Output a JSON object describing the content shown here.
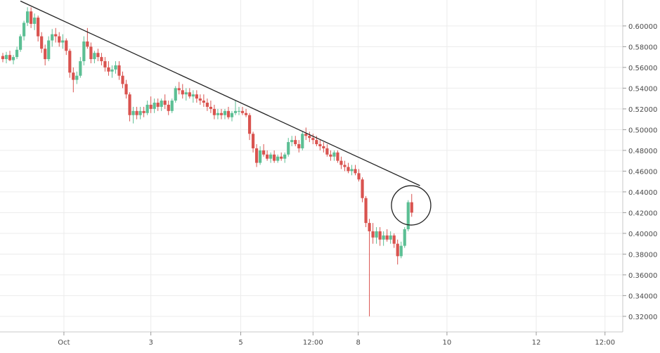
{
  "chart_data": {
    "type": "candlestick",
    "title": "",
    "xlabel": "",
    "ylabel": "",
    "ylim": [
      0.305,
      0.625
    ],
    "grid": true,
    "y_ticks": [
      "0.60000",
      "0.58000",
      "0.56000",
      "0.54000",
      "0.52000",
      "0.50000",
      "0.48000",
      "0.46000",
      "0.44000",
      "0.42000",
      "0.40000",
      "0.38000",
      "0.36000",
      "0.34000",
      "0.32000"
    ],
    "y_tick_values": [
      0.6,
      0.58,
      0.56,
      0.54,
      0.52,
      0.5,
      0.48,
      0.46,
      0.44,
      0.42,
      0.4,
      0.38,
      0.36,
      0.34,
      0.32
    ],
    "x_ticks": [
      "Oct",
      "3",
      "5",
      "12:00",
      "8",
      "10",
      "12",
      "12:00"
    ],
    "x_tick_pos": [
      1.04,
      2.52,
      4.05,
      5.28,
      6.05,
      7.56,
      9.08,
      10.25
    ],
    "xlim": [
      0.0,
      10.6
    ],
    "up_color": "#5cbf94",
    "down_color": "#d9534f",
    "candles": [
      [
        0.0,
        0.571,
        0.574,
        0.565,
        0.568
      ],
      [
        0.06,
        0.568,
        0.575,
        0.564,
        0.572
      ],
      [
        0.12,
        0.572,
        0.576,
        0.566,
        0.567
      ],
      [
        0.18,
        0.567,
        0.572,
        0.563,
        0.57
      ],
      [
        0.24,
        0.57,
        0.58,
        0.568,
        0.577
      ],
      [
        0.3,
        0.577,
        0.592,
        0.575,
        0.59
      ],
      [
        0.36,
        0.59,
        0.605,
        0.586,
        0.603
      ],
      [
        0.42,
        0.603,
        0.618,
        0.6,
        0.614
      ],
      [
        0.48,
        0.614,
        0.618,
        0.598,
        0.602
      ],
      [
        0.54,
        0.602,
        0.612,
        0.596,
        0.608
      ],
      [
        0.6,
        0.608,
        0.61,
        0.585,
        0.59
      ],
      [
        0.66,
        0.59,
        0.594,
        0.574,
        0.578
      ],
      [
        0.72,
        0.578,
        0.582,
        0.562,
        0.568
      ],
      [
        0.78,
        0.568,
        0.59,
        0.566,
        0.586
      ],
      [
        0.84,
        0.586,
        0.597,
        0.58,
        0.592
      ],
      [
        0.9,
        0.592,
        0.598,
        0.584,
        0.59
      ],
      [
        0.96,
        0.59,
        0.594,
        0.58,
        0.584
      ],
      [
        1.02,
        0.584,
        0.592,
        0.578,
        0.586
      ],
      [
        1.08,
        0.586,
        0.588,
        0.572,
        0.576
      ],
      [
        1.14,
        0.576,
        0.578,
        0.55,
        0.555
      ],
      [
        1.2,
        0.555,
        0.56,
        0.536,
        0.548
      ],
      [
        1.26,
        0.548,
        0.556,
        0.544,
        0.552
      ],
      [
        1.32,
        0.552,
        0.57,
        0.55,
        0.566
      ],
      [
        1.38,
        0.566,
        0.59,
        0.562,
        0.585
      ],
      [
        1.44,
        0.585,
        0.598,
        0.578,
        0.58
      ],
      [
        1.5,
        0.58,
        0.584,
        0.564,
        0.568
      ],
      [
        1.56,
        0.568,
        0.576,
        0.564,
        0.574
      ],
      [
        1.62,
        0.574,
        0.578,
        0.566,
        0.57
      ],
      [
        1.68,
        0.57,
        0.574,
        0.562,
        0.566
      ],
      [
        1.74,
        0.566,
        0.57,
        0.556,
        0.56
      ],
      [
        1.8,
        0.56,
        0.566,
        0.552,
        0.556
      ],
      [
        1.86,
        0.556,
        0.562,
        0.55,
        0.558
      ],
      [
        1.92,
        0.558,
        0.566,
        0.554,
        0.562
      ],
      [
        1.98,
        0.562,
        0.566,
        0.548,
        0.552
      ],
      [
        2.04,
        0.552,
        0.556,
        0.54,
        0.544
      ],
      [
        2.1,
        0.544,
        0.548,
        0.53,
        0.534
      ],
      [
        2.16,
        0.534,
        0.536,
        0.508,
        0.514
      ],
      [
        2.22,
        0.514,
        0.522,
        0.506,
        0.518
      ],
      [
        2.28,
        0.518,
        0.522,
        0.51,
        0.514
      ],
      [
        2.34,
        0.514,
        0.522,
        0.51,
        0.518
      ],
      [
        2.4,
        0.518,
        0.522,
        0.512,
        0.516
      ],
      [
        2.46,
        0.516,
        0.528,
        0.514,
        0.524
      ],
      [
        2.52,
        0.524,
        0.532,
        0.516,
        0.52
      ],
      [
        2.58,
        0.52,
        0.53,
        0.516,
        0.526
      ],
      [
        2.64,
        0.526,
        0.53,
        0.518,
        0.522
      ],
      [
        2.7,
        0.522,
        0.53,
        0.518,
        0.528
      ],
      [
        2.76,
        0.528,
        0.534,
        0.52,
        0.524
      ],
      [
        2.82,
        0.524,
        0.528,
        0.514,
        0.518
      ],
      [
        2.88,
        0.518,
        0.53,
        0.516,
        0.528
      ],
      [
        2.94,
        0.528,
        0.542,
        0.526,
        0.54
      ],
      [
        3.0,
        0.54,
        0.546,
        0.534,
        0.538
      ],
      [
        3.06,
        0.538,
        0.544,
        0.53,
        0.534
      ],
      [
        3.12,
        0.534,
        0.54,
        0.528,
        0.536
      ],
      [
        3.18,
        0.536,
        0.54,
        0.53,
        0.532
      ],
      [
        3.24,
        0.532,
        0.538,
        0.526,
        0.534
      ],
      [
        3.3,
        0.534,
        0.538,
        0.526,
        0.53
      ],
      [
        3.36,
        0.53,
        0.534,
        0.524,
        0.528
      ],
      [
        3.42,
        0.528,
        0.534,
        0.522,
        0.526
      ],
      [
        3.48,
        0.526,
        0.53,
        0.518,
        0.522
      ],
      [
        3.54,
        0.522,
        0.528,
        0.516,
        0.52
      ],
      [
        3.6,
        0.52,
        0.524,
        0.51,
        0.514
      ],
      [
        3.66,
        0.514,
        0.52,
        0.51,
        0.516
      ],
      [
        3.72,
        0.516,
        0.52,
        0.51,
        0.514
      ],
      [
        3.78,
        0.514,
        0.52,
        0.51,
        0.518
      ],
      [
        3.84,
        0.518,
        0.522,
        0.51,
        0.512
      ],
      [
        3.9,
        0.512,
        0.518,
        0.508,
        0.516
      ],
      [
        3.96,
        0.516,
        0.528,
        0.514,
        0.518
      ],
      [
        4.02,
        0.518,
        0.522,
        0.514,
        0.518
      ],
      [
        4.08,
        0.518,
        0.522,
        0.514,
        0.516
      ],
      [
        4.14,
        0.516,
        0.52,
        0.512,
        0.514
      ],
      [
        4.2,
        0.514,
        0.516,
        0.49,
        0.496
      ],
      [
        4.26,
        0.496,
        0.498,
        0.478,
        0.482
      ],
      [
        4.32,
        0.482,
        0.486,
        0.464,
        0.468
      ],
      [
        4.38,
        0.468,
        0.484,
        0.466,
        0.48
      ],
      [
        4.44,
        0.48,
        0.486,
        0.474,
        0.476
      ],
      [
        4.5,
        0.476,
        0.48,
        0.47,
        0.472
      ],
      [
        4.56,
        0.472,
        0.478,
        0.468,
        0.476
      ],
      [
        4.62,
        0.476,
        0.48,
        0.468,
        0.47
      ],
      [
        4.68,
        0.47,
        0.476,
        0.468,
        0.474
      ],
      [
        4.74,
        0.474,
        0.478,
        0.47,
        0.472
      ],
      [
        4.8,
        0.472,
        0.478,
        0.468,
        0.476
      ],
      [
        4.86,
        0.476,
        0.492,
        0.474,
        0.488
      ],
      [
        4.92,
        0.488,
        0.494,
        0.484,
        0.49
      ],
      [
        4.98,
        0.49,
        0.494,
        0.484,
        0.486
      ],
      [
        5.04,
        0.486,
        0.49,
        0.478,
        0.482
      ],
      [
        5.1,
        0.482,
        0.498,
        0.48,
        0.496
      ],
      [
        5.16,
        0.496,
        0.502,
        0.49,
        0.494
      ],
      [
        5.22,
        0.494,
        0.498,
        0.488,
        0.492
      ],
      [
        5.28,
        0.492,
        0.496,
        0.486,
        0.49
      ],
      [
        5.34,
        0.49,
        0.494,
        0.484,
        0.486
      ],
      [
        5.4,
        0.486,
        0.49,
        0.48,
        0.484
      ],
      [
        5.46,
        0.484,
        0.488,
        0.478,
        0.482
      ],
      [
        5.52,
        0.482,
        0.486,
        0.474,
        0.476
      ],
      [
        5.58,
        0.476,
        0.48,
        0.47,
        0.474
      ],
      [
        5.64,
        0.474,
        0.48,
        0.47,
        0.478
      ],
      [
        5.7,
        0.478,
        0.48,
        0.468,
        0.47
      ],
      [
        5.76,
        0.47,
        0.474,
        0.462,
        0.466
      ],
      [
        5.82,
        0.466,
        0.47,
        0.46,
        0.464
      ],
      [
        5.88,
        0.464,
        0.468,
        0.458,
        0.46
      ],
      [
        5.94,
        0.46,
        0.466,
        0.456,
        0.462
      ],
      [
        6.0,
        0.462,
        0.466,
        0.456,
        0.458
      ],
      [
        6.06,
        0.458,
        0.462,
        0.45,
        0.452
      ],
      [
        6.12,
        0.452,
        0.454,
        0.43,
        0.434
      ],
      [
        6.18,
        0.434,
        0.436,
        0.406,
        0.41
      ],
      [
        6.24,
        0.41,
        0.414,
        0.32,
        0.402
      ],
      [
        6.3,
        0.402,
        0.41,
        0.39,
        0.396
      ],
      [
        6.36,
        0.396,
        0.406,
        0.39,
        0.402
      ],
      [
        6.42,
        0.402,
        0.406,
        0.388,
        0.394
      ],
      [
        6.48,
        0.394,
        0.402,
        0.388,
        0.398
      ],
      [
        6.54,
        0.398,
        0.404,
        0.392,
        0.394
      ],
      [
        6.6,
        0.394,
        0.402,
        0.39,
        0.398
      ],
      [
        6.66,
        0.398,
        0.4,
        0.386,
        0.39
      ],
      [
        6.72,
        0.39,
        0.394,
        0.37,
        0.378
      ],
      [
        6.78,
        0.378,
        0.392,
        0.376,
        0.388
      ],
      [
        6.84,
        0.388,
        0.406,
        0.386,
        0.404
      ],
      [
        6.9,
        0.404,
        0.432,
        0.402,
        0.43
      ],
      [
        6.96,
        0.43,
        0.438,
        0.416,
        0.42
      ]
    ],
    "trendline": {
      "x1": 0.3,
      "y1": 0.624,
      "x2": 7.1,
      "y2": 0.446
    },
    "circle": {
      "cx": 6.95,
      "cy": 0.427,
      "r_px": 28
    }
  }
}
